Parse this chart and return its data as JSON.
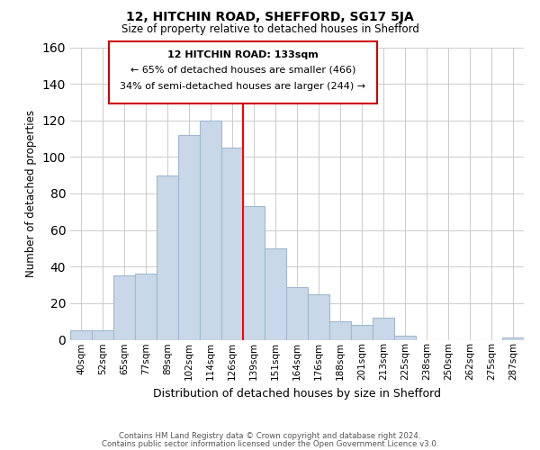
{
  "title": "12, HITCHIN ROAD, SHEFFORD, SG17 5JA",
  "subtitle": "Size of property relative to detached houses in Shefford",
  "xlabel": "Distribution of detached houses by size in Shefford",
  "ylabel": "Number of detached properties",
  "footer_lines": [
    "Contains HM Land Registry data © Crown copyright and database right 2024.",
    "Contains public sector information licensed under the Open Government Licence v3.0."
  ],
  "bar_labels": [
    "40sqm",
    "52sqm",
    "65sqm",
    "77sqm",
    "89sqm",
    "102sqm",
    "114sqm",
    "126sqm",
    "139sqm",
    "151sqm",
    "164sqm",
    "176sqm",
    "188sqm",
    "201sqm",
    "213sqm",
    "225sqm",
    "238sqm",
    "250sqm",
    "262sqm",
    "275sqm",
    "287sqm"
  ],
  "bar_values": [
    5,
    5,
    35,
    36,
    90,
    112,
    120,
    105,
    73,
    50,
    29,
    25,
    10,
    8,
    12,
    2,
    0,
    0,
    0,
    0,
    1
  ],
  "bar_color": "#c8d8e8",
  "bar_edge_color": "#a0b8d0",
  "vline_color": "red",
  "ylim": [
    0,
    160
  ],
  "yticks": [
    0,
    20,
    40,
    60,
    80,
    100,
    120,
    140,
    160
  ],
  "annotation_title": "12 HITCHIN ROAD: 133sqm",
  "annotation_line1": "← 65% of detached houses are smaller (466)",
  "annotation_line2": "34% of semi-detached houses are larger (244) →"
}
